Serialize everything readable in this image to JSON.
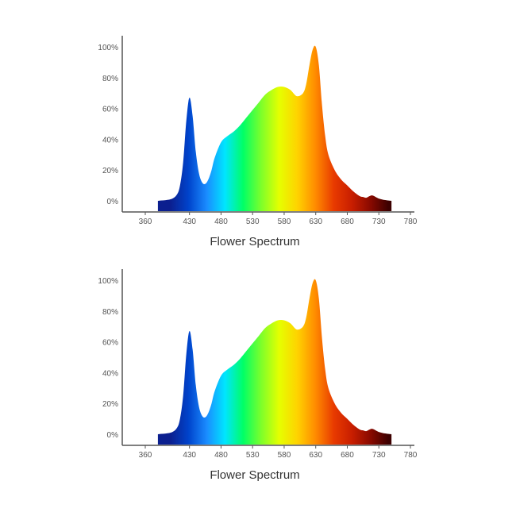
{
  "chart_data": [
    {
      "type": "area",
      "title": "Flower Spectrum",
      "xlabel": "",
      "ylabel": "",
      "x_ticks": [
        360,
        430,
        480,
        530,
        580,
        630,
        680,
        730,
        780
      ],
      "y_ticks": [
        "0%",
        "20%",
        "40%",
        "60%",
        "80%",
        "100%"
      ],
      "grid": false,
      "fill": "visible-spectrum gradient",
      "x": [
        380,
        400,
        410,
        415,
        420,
        425,
        430,
        435,
        440,
        445,
        450,
        455,
        460,
        465,
        470,
        480,
        490,
        500,
        510,
        520,
        530,
        540,
        550,
        560,
        570,
        580,
        590,
        600,
        610,
        615,
        620,
        625,
        630,
        635,
        640,
        645,
        650,
        660,
        670,
        680,
        690,
        700,
        705,
        710,
        715,
        720,
        730,
        740,
        750
      ],
      "y": [
        0,
        1,
        4,
        10,
        25,
        52,
        67,
        55,
        32,
        18,
        12,
        11,
        14,
        20,
        28,
        38,
        42,
        45,
        49,
        54,
        59,
        64,
        69,
        72,
        74,
        74,
        72,
        68,
        70,
        76,
        88,
        98,
        100,
        88,
        62,
        42,
        30,
        20,
        14,
        10,
        6,
        3,
        2.5,
        2,
        3,
        3.5,
        1.5,
        0.5,
        0
      ]
    },
    {
      "type": "area",
      "title": "Flower Spectrum",
      "xlabel": "",
      "ylabel": "",
      "x_ticks": [
        360,
        430,
        480,
        530,
        580,
        630,
        680,
        730,
        780
      ],
      "y_ticks": [
        "0%",
        "20%",
        "40%",
        "60%",
        "80%",
        "100%"
      ],
      "grid": false,
      "fill": "visible-spectrum gradient",
      "x": [
        380,
        400,
        410,
        415,
        420,
        425,
        430,
        435,
        440,
        445,
        450,
        455,
        460,
        465,
        470,
        480,
        490,
        500,
        510,
        520,
        530,
        540,
        550,
        560,
        570,
        580,
        590,
        600,
        610,
        615,
        620,
        625,
        630,
        635,
        640,
        645,
        650,
        660,
        670,
        680,
        690,
        700,
        705,
        710,
        715,
        720,
        730,
        740,
        750
      ],
      "y": [
        0,
        1,
        4,
        10,
        25,
        52,
        67,
        55,
        32,
        18,
        12,
        11,
        14,
        20,
        28,
        38,
        42,
        45,
        49,
        54,
        59,
        64,
        69,
        72,
        74,
        74,
        72,
        68,
        70,
        76,
        88,
        98,
        100,
        88,
        62,
        42,
        30,
        20,
        14,
        10,
        6,
        3,
        2.5,
        2,
        3,
        3.5,
        1.5,
        0.5,
        0
      ]
    }
  ],
  "colors": {
    "axis": "#555555",
    "spectrum_stops": [
      "#0b1f8f",
      "#0044cc",
      "#1a8cff",
      "#00e5ff",
      "#00ff66",
      "#7dff2a",
      "#e6ff00",
      "#ffd200",
      "#ff8a00",
      "#e83a00",
      "#c81e00",
      "#8a0a00",
      "#3d0000"
    ]
  }
}
